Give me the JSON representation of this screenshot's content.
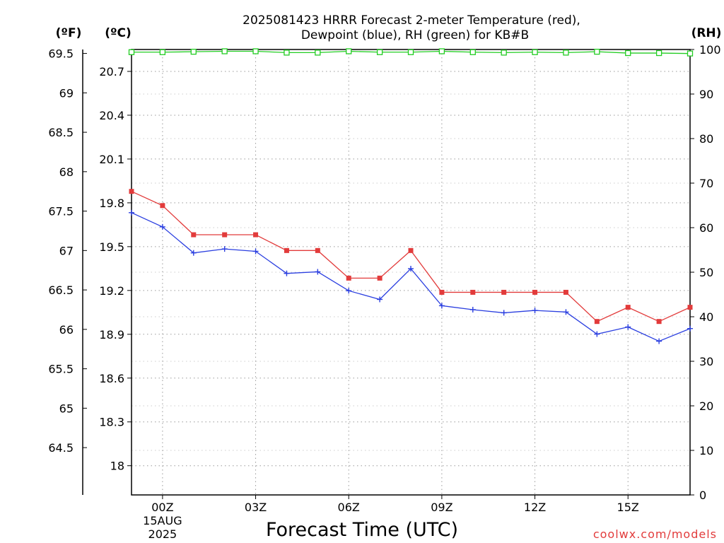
{
  "title_line1": "2025081423 HRRR Forecast 2-meter Temperature (red),",
  "title_line2": "Dewpoint (blue), RH (green) for KB#B",
  "credit": "coolwx.com/models",
  "colors": {
    "temperature": "#e23b3b",
    "dewpoint": "#2b3fe0",
    "rh": "#22cc22",
    "grid": "#9a9a9a"
  },
  "chart_data": {
    "type": "line",
    "xlabel": "Forecast Time (UTC)",
    "x": [
      "23Z",
      "00Z",
      "01Z",
      "02Z",
      "03Z",
      "04Z",
      "05Z",
      "06Z",
      "07Z",
      "08Z",
      "09Z",
      "10Z",
      "11Z",
      "12Z",
      "13Z",
      "14Z",
      "15Z",
      "16Z",
      "17Z"
    ],
    "x_tick_labels": [
      {
        "hour_index": 1,
        "label": "00Z",
        "sub1": "15AUG",
        "sub2": "2025"
      },
      {
        "hour_index": 4,
        "label": "03Z"
      },
      {
        "hour_index": 7,
        "label": "06Z"
      },
      {
        "hour_index": 10,
        "label": "09Z"
      },
      {
        "hour_index": 13,
        "label": "12Z"
      },
      {
        "hour_index": 16,
        "label": "15Z"
      }
    ],
    "xlim_hours": [
      -1,
      17
    ],
    "axes": {
      "fahrenheit": {
        "unit_label": "(ºF)",
        "ticks": [
          "69.5",
          "69",
          "68.5",
          "68",
          "67.5",
          "67",
          "66.5",
          "66",
          "65.5",
          "65",
          "64.5"
        ],
        "range": [
          63.9,
          69.55
        ]
      },
      "celsius": {
        "unit_label": "(ºC)",
        "ticks": [
          "20.7",
          "20.4",
          "20.1",
          "19.8",
          "19.5",
          "19.2",
          "18.9",
          "18.6",
          "18.3",
          "18"
        ],
        "range": [
          17.8,
          20.85
        ]
      },
      "rh": {
        "unit_label": "(RH)",
        "ticks": [
          "100",
          "90",
          "80",
          "70",
          "60",
          "50",
          "40",
          "30",
          "20",
          "10",
          "0"
        ],
        "range": [
          0,
          100
        ]
      }
    },
    "grid": true,
    "series": [
      {
        "name": "Temperature",
        "unit": "°F",
        "axis": "fahrenheit",
        "color": "#e23b3b",
        "marker": "square",
        "values": [
          67.75,
          67.57,
          67.2,
          67.2,
          67.2,
          67.0,
          67.0,
          66.65,
          66.65,
          67.0,
          66.47,
          66.47,
          66.47,
          66.47,
          66.47,
          66.1,
          66.28,
          66.1,
          66.28
        ]
      },
      {
        "name": "Dewpoint",
        "unit": "°F",
        "axis": "fahrenheit",
        "color": "#2b3fe0",
        "marker": "plus",
        "values": [
          67.48,
          67.3,
          66.97,
          67.02,
          66.99,
          66.71,
          66.73,
          66.49,
          66.38,
          66.77,
          66.3,
          66.25,
          66.21,
          66.24,
          66.22,
          65.94,
          66.03,
          65.85,
          66.01
        ]
      },
      {
        "name": "RH",
        "unit": "%",
        "axis": "rh",
        "color": "#22cc22",
        "marker": "open-square",
        "values": [
          99.4,
          99.4,
          99.5,
          99.6,
          99.6,
          99.3,
          99.3,
          99.6,
          99.4,
          99.4,
          99.6,
          99.4,
          99.3,
          99.4,
          99.3,
          99.5,
          99.2,
          99.2,
          99.1
        ]
      }
    ]
  }
}
